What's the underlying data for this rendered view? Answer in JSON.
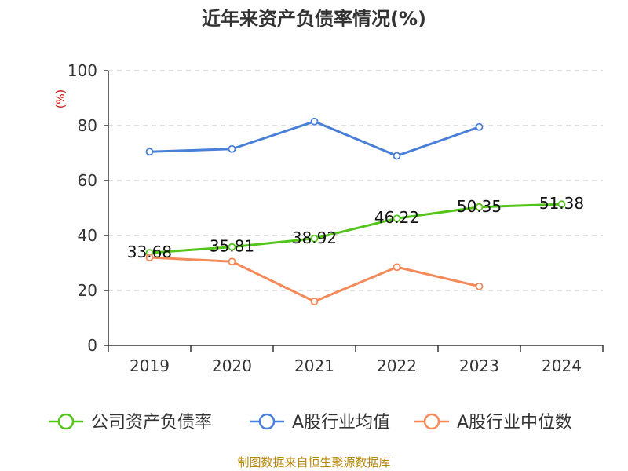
{
  "title": "近年来资产负债率情况(%)",
  "source": "制图数据来自恒生聚源数据库",
  "chart_data": {
    "type": "line",
    "title": "近年来资产负债率情况(%)",
    "ylabel": "(%)",
    "xlabel": "",
    "ylim": [
      0,
      100
    ],
    "yticks": [
      0,
      20,
      40,
      60,
      80,
      100
    ],
    "categories": [
      "2019",
      "2020",
      "2021",
      "2022",
      "2023",
      "2024"
    ],
    "grid": true,
    "legend_position": "bottom",
    "series": [
      {
        "name": "公司资产负债率",
        "color": "#52c41a",
        "values": [
          33.68,
          35.81,
          38.92,
          46.22,
          50.35,
          51.38
        ],
        "labels": [
          "33.68",
          "35.81",
          "38.92",
          "46.22",
          "50.35",
          "51.38"
        ]
      },
      {
        "name": "A股行业均值",
        "color": "#4a7fd8",
        "values": [
          70.5,
          71.5,
          81.5,
          69.0,
          79.5,
          null
        ]
      },
      {
        "name": "A股行业中位数",
        "color": "#f48a5a",
        "values": [
          32.0,
          30.5,
          16.0,
          28.5,
          21.5,
          null
        ]
      }
    ]
  }
}
